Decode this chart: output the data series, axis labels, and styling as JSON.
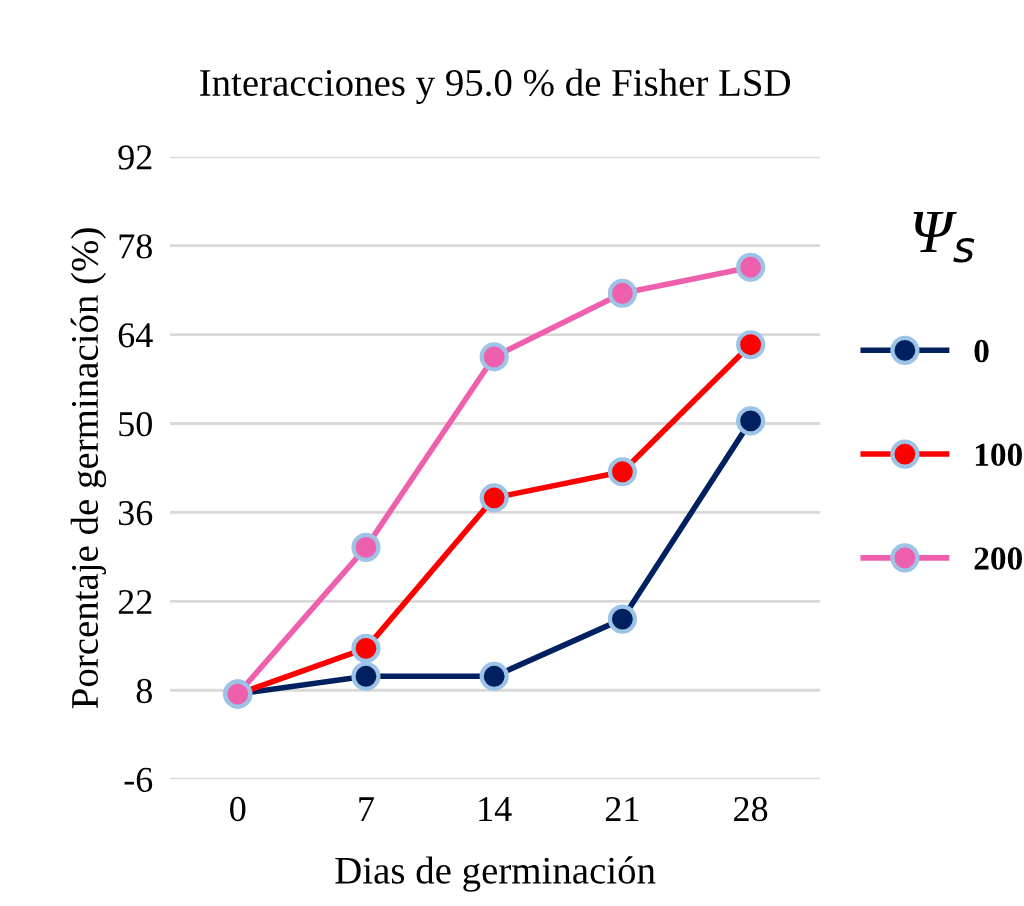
{
  "chart_data": {
    "type": "line",
    "title": "Interacciones y 95.0 % de Fisher LSD",
    "xlabel": "Dias de germinación",
    "ylabel": "Porcentaje de germinación (%)",
    "legend_title": "Ψ$_{s}$",
    "x": [
      0,
      7,
      14,
      21,
      28
    ],
    "series": [
      {
        "name": "0",
        "color": "#002060",
        "values": [
          7.4,
          10.2,
          10.2,
          19.2,
          50.4
        ]
      },
      {
        "name": "100",
        "color": "#ff0000",
        "values": [
          7.4,
          14.6,
          38.3,
          42.4,
          62.4
        ]
      },
      {
        "name": "200",
        "color": "#ee5fae",
        "values": [
          7.4,
          30.5,
          60.5,
          70.5,
          74.6
        ]
      }
    ],
    "xlim": [
      -3.7,
      31.8
    ],
    "xticks": [
      0,
      7,
      14,
      21,
      28
    ],
    "ylim": [
      -6,
      92
    ],
    "yticks": [
      -6,
      8,
      22,
      36,
      50,
      64,
      78,
      92
    ],
    "grid": "y",
    "legend": "right",
    "marker": "circle",
    "line_style": "solid"
  }
}
